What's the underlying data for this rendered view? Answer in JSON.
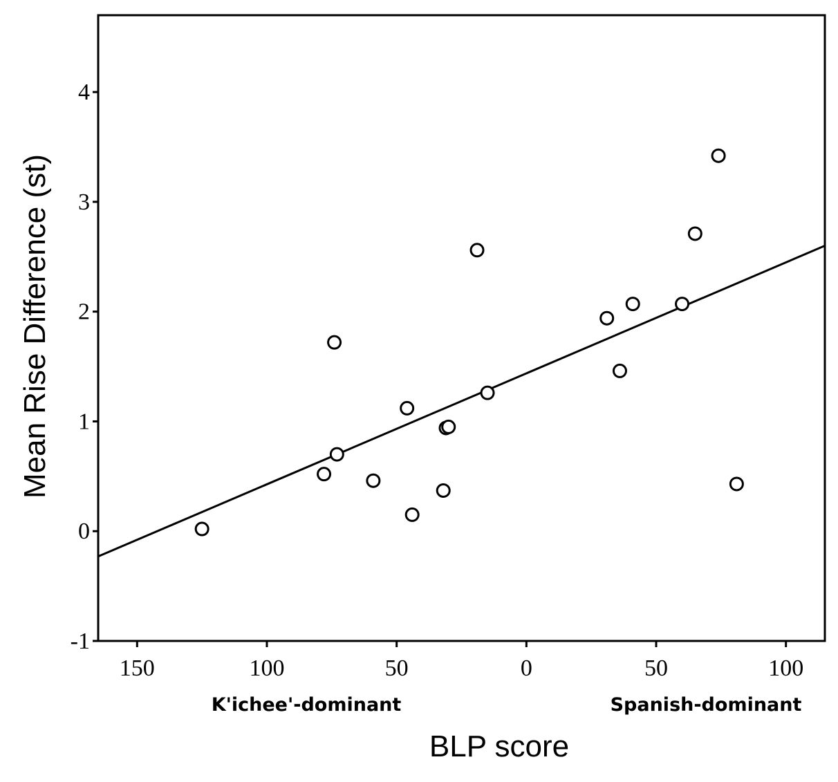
{
  "chart_data": {
    "type": "scatter",
    "xlabel": "BLP score",
    "ylabel": "Mean Rise Difference (st)",
    "xlim": [
      -165,
      115
    ],
    "ylim": [
      -1,
      4.7
    ],
    "x_ticks": [
      -150,
      -100,
      -50,
      0,
      50,
      100
    ],
    "x_tick_labels": [
      "150",
      "100",
      "50",
      "0",
      "50",
      "100"
    ],
    "y_ticks": [
      -1,
      0,
      1,
      2,
      3,
      4
    ],
    "y_tick_labels": [
      "-1",
      "0",
      "1",
      "2",
      "3",
      "4"
    ],
    "annotations": {
      "left": "K'ichee'-dominant",
      "right": "Spanish-dominant"
    },
    "points": [
      {
        "x": -125,
        "y": 0.02
      },
      {
        "x": -78,
        "y": 0.52
      },
      {
        "x": -74,
        "y": 1.72
      },
      {
        "x": -73,
        "y": 0.7
      },
      {
        "x": -59,
        "y": 0.46
      },
      {
        "x": -46,
        "y": 1.12
      },
      {
        "x": -44,
        "y": 0.15
      },
      {
        "x": -32,
        "y": 0.37
      },
      {
        "x": -31,
        "y": 0.94
      },
      {
        "x": -30,
        "y": 0.95
      },
      {
        "x": -19,
        "y": 2.56
      },
      {
        "x": -15,
        "y": 1.26
      },
      {
        "x": 31,
        "y": 1.94
      },
      {
        "x": 36,
        "y": 1.46
      },
      {
        "x": 41,
        "y": 2.07
      },
      {
        "x": 60,
        "y": 2.07
      },
      {
        "x": 65,
        "y": 2.71
      },
      {
        "x": 74,
        "y": 3.42
      },
      {
        "x": 81,
        "y": 0.43
      }
    ],
    "fit_line": {
      "x": [
        -165,
        115
      ],
      "y": [
        -0.23,
        2.6
      ]
    },
    "grid": false,
    "legend": "none"
  }
}
